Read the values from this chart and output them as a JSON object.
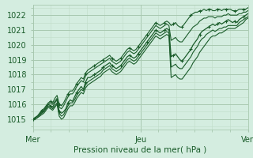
{
  "bg_color": "#d4ede0",
  "grid_color_major": "#a8c8b0",
  "grid_color_minor": "#c0dcc8",
  "line_color": "#1a5c2a",
  "title": "Pression niveau de la mer( hPa )",
  "xlabel_color": "#1a5c2a",
  "xtick_labels": [
    "Mer",
    "Jeu",
    "Ven"
  ],
  "xtick_positions": [
    0,
    0.5,
    1.0
  ],
  "ylim": [
    1014.3,
    1022.7
  ],
  "yticks": [
    1015,
    1016,
    1017,
    1018,
    1019,
    1020,
    1021,
    1022
  ],
  "xlim": [
    0,
    1.0
  ],
  "series_main": [
    1015.0,
    1015.1,
    1015.2,
    1015.3,
    1015.5,
    1015.6,
    1015.8,
    1016.0,
    1015.9,
    1015.8,
    1016.1,
    1016.3,
    1015.5,
    1015.4,
    1015.5,
    1015.7,
    1016.1,
    1016.3,
    1016.2,
    1016.5,
    1016.8,
    1017.0,
    1017.2,
    1017.0,
    1017.5,
    1017.8,
    1017.8,
    1017.9,
    1018.0,
    1018.1,
    1018.2,
    1018.3,
    1018.5,
    1018.6,
    1018.7,
    1018.8,
    1018.6,
    1018.5,
    1018.4,
    1018.5,
    1018.6,
    1018.8,
    1019.0,
    1019.2,
    1019.3,
    1019.2,
    1019.1,
    1019.2,
    1019.4,
    1019.6,
    1019.8,
    1020.0,
    1020.2,
    1020.4,
    1020.6,
    1020.8,
    1021.0,
    1020.9,
    1020.8,
    1020.9,
    1021.0,
    1021.1,
    1021.0,
    1019.2,
    1019.3,
    1019.4,
    1019.2,
    1019.0,
    1018.9,
    1019.1,
    1019.3,
    1019.5,
    1019.7,
    1020.0,
    1020.2,
    1020.4,
    1020.7,
    1020.9,
    1021.0,
    1021.1,
    1021.2,
    1021.3,
    1021.4,
    1021.3,
    1021.4,
    1021.5,
    1021.4,
    1021.5,
    1021.6,
    1021.7,
    1021.6,
    1021.5,
    1021.6,
    1021.5,
    1021.7,
    1021.8,
    1021.9,
    1022.0,
    1022.1
  ],
  "series_upper1": [
    1015.0,
    1015.1,
    1015.2,
    1015.3,
    1015.5,
    1015.6,
    1015.8,
    1016.0,
    1016.1,
    1016.0,
    1016.2,
    1016.4,
    1015.8,
    1015.7,
    1015.9,
    1016.2,
    1016.5,
    1016.7,
    1016.7,
    1016.9,
    1017.2,
    1017.4,
    1017.6,
    1017.5,
    1017.9,
    1018.1,
    1018.2,
    1018.3,
    1018.4,
    1018.5,
    1018.6,
    1018.7,
    1018.8,
    1018.9,
    1019.0,
    1019.1,
    1018.9,
    1018.8,
    1018.7,
    1018.8,
    1018.9,
    1019.1,
    1019.3,
    1019.5,
    1019.6,
    1019.5,
    1019.4,
    1019.5,
    1019.7,
    1019.9,
    1020.1,
    1020.3,
    1020.5,
    1020.7,
    1020.9,
    1021.1,
    1021.3,
    1021.2,
    1021.1,
    1021.2,
    1021.3,
    1021.4,
    1021.3,
    1020.3,
    1020.4,
    1020.5,
    1020.3,
    1020.2,
    1020.2,
    1020.4,
    1020.6,
    1020.8,
    1021.0,
    1021.2,
    1021.3,
    1021.4,
    1021.6,
    1021.7,
    1021.8,
    1021.8,
    1021.9,
    1021.9,
    1021.9,
    1021.8,
    1021.9,
    1021.9,
    1021.9,
    1022.0,
    1022.0,
    1022.1,
    1022.0,
    1022.0,
    1022.0,
    1022.0,
    1022.1,
    1022.1,
    1022.2,
    1022.2,
    1022.3
  ],
  "series_upper2": [
    1015.0,
    1015.1,
    1015.2,
    1015.4,
    1015.6,
    1015.7,
    1015.9,
    1016.1,
    1016.2,
    1016.1,
    1016.4,
    1016.6,
    1016.0,
    1015.9,
    1016.1,
    1016.4,
    1016.7,
    1016.9,
    1016.9,
    1017.1,
    1017.4,
    1017.6,
    1017.8,
    1017.7,
    1018.1,
    1018.3,
    1018.4,
    1018.5,
    1018.6,
    1018.7,
    1018.8,
    1018.9,
    1019.0,
    1019.1,
    1019.2,
    1019.3,
    1019.1,
    1019.0,
    1018.9,
    1019.0,
    1019.1,
    1019.3,
    1019.5,
    1019.7,
    1019.8,
    1019.7,
    1019.6,
    1019.7,
    1019.9,
    1020.1,
    1020.3,
    1020.5,
    1020.7,
    1020.9,
    1021.1,
    1021.3,
    1021.5,
    1021.4,
    1021.3,
    1021.4,
    1021.5,
    1021.6,
    1021.5,
    1021.3,
    1021.4,
    1021.5,
    1021.3,
    1021.2,
    1021.2,
    1021.4,
    1021.6,
    1021.8,
    1022.0,
    1022.1,
    1022.2,
    1022.2,
    1022.3,
    1022.3,
    1022.4,
    1022.3,
    1022.4,
    1022.4,
    1022.3,
    1022.3,
    1022.4,
    1022.4,
    1022.3,
    1022.4,
    1022.4,
    1022.4,
    1022.4,
    1022.3,
    1022.3,
    1022.3,
    1022.4,
    1022.4,
    1022.4,
    1022.4,
    1022.5
  ],
  "series_lower1": [
    1015.0,
    1015.0,
    1015.1,
    1015.2,
    1015.4,
    1015.5,
    1015.7,
    1015.9,
    1015.8,
    1015.7,
    1015.9,
    1016.1,
    1015.4,
    1015.2,
    1015.3,
    1015.6,
    1015.9,
    1016.1,
    1016.1,
    1016.3,
    1016.6,
    1016.8,
    1017.0,
    1016.9,
    1017.3,
    1017.5,
    1017.6,
    1017.7,
    1017.8,
    1017.9,
    1018.0,
    1018.1,
    1018.3,
    1018.4,
    1018.5,
    1018.6,
    1018.4,
    1018.3,
    1018.2,
    1018.3,
    1018.4,
    1018.6,
    1018.8,
    1019.0,
    1019.1,
    1019.0,
    1018.9,
    1019.0,
    1019.2,
    1019.4,
    1019.6,
    1019.8,
    1020.0,
    1020.2,
    1020.4,
    1020.6,
    1020.8,
    1020.7,
    1020.6,
    1020.7,
    1020.8,
    1020.9,
    1020.8,
    1018.5,
    1018.6,
    1018.7,
    1018.5,
    1018.4,
    1018.4,
    1018.6,
    1018.8,
    1019.0,
    1019.2,
    1019.5,
    1019.7,
    1019.9,
    1020.2,
    1020.4,
    1020.5,
    1020.7,
    1020.8,
    1020.9,
    1021.0,
    1020.9,
    1021.0,
    1021.1,
    1021.1,
    1021.2,
    1021.2,
    1021.3,
    1021.3,
    1021.3,
    1021.3,
    1021.3,
    1021.5,
    1021.6,
    1021.7,
    1021.8,
    1021.9
  ],
  "series_lower2": [
    1015.0,
    1015.0,
    1015.1,
    1015.2,
    1015.3,
    1015.4,
    1015.6,
    1015.8,
    1015.7,
    1015.6,
    1015.8,
    1016.0,
    1015.2,
    1015.0,
    1015.1,
    1015.4,
    1015.7,
    1015.9,
    1015.9,
    1016.1,
    1016.4,
    1016.6,
    1016.8,
    1016.7,
    1017.1,
    1017.3,
    1017.4,
    1017.5,
    1017.6,
    1017.7,
    1017.8,
    1017.9,
    1018.1,
    1018.2,
    1018.3,
    1018.4,
    1018.2,
    1018.1,
    1018.0,
    1018.1,
    1018.2,
    1018.4,
    1018.6,
    1018.8,
    1018.9,
    1018.8,
    1018.7,
    1018.8,
    1019.0,
    1019.2,
    1019.4,
    1019.6,
    1019.8,
    1020.0,
    1020.2,
    1020.4,
    1020.6,
    1020.5,
    1020.4,
    1020.5,
    1020.6,
    1020.7,
    1020.6,
    1017.8,
    1017.9,
    1018.0,
    1017.8,
    1017.7,
    1017.7,
    1017.9,
    1018.1,
    1018.3,
    1018.5,
    1018.8,
    1019.0,
    1019.2,
    1019.5,
    1019.7,
    1019.9,
    1020.1,
    1020.3,
    1020.5,
    1020.6,
    1020.6,
    1020.7,
    1020.8,
    1020.8,
    1020.9,
    1021.0,
    1021.1,
    1021.1,
    1021.1,
    1021.1,
    1021.2,
    1021.3,
    1021.4,
    1021.5,
    1021.7,
    1021.8
  ]
}
